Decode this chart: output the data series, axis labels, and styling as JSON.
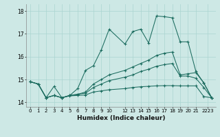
{
  "xlabel": "Humidex (Indice chaleur)",
  "background_color": "#cde8e5",
  "grid_color": "#aad4d0",
  "line_color": "#1a6b5e",
  "xlim": [
    -0.5,
    23.5
  ],
  "ylim": [
    13.8,
    18.3
  ],
  "yticks": [
    14,
    15,
    16,
    17,
    18
  ],
  "xtick_labels": [
    "0",
    "1",
    "2",
    "3",
    "4",
    "5",
    "6",
    "7",
    "8",
    "9",
    "10",
    "12",
    "13",
    "14",
    "15",
    "16",
    "17",
    "18",
    "19",
    "20",
    "21",
    "2223"
  ],
  "xtick_pos": [
    0,
    1,
    2,
    3,
    4,
    5,
    6,
    7,
    8,
    9,
    10,
    12,
    13,
    14,
    15,
    16,
    17,
    18,
    19,
    20,
    21,
    22.5
  ],
  "series": [
    {
      "x": [
        0,
        1,
        2,
        3,
        4,
        5,
        6,
        7,
        8,
        9,
        10,
        12,
        13,
        14,
        15,
        16,
        17,
        18,
        19,
        20,
        21,
        22,
        23
      ],
      "y": [
        14.9,
        14.8,
        14.2,
        14.7,
        14.2,
        14.3,
        14.6,
        15.4,
        15.6,
        16.3,
        17.2,
        16.55,
        17.1,
        17.2,
        16.6,
        17.78,
        17.75,
        17.7,
        16.65,
        16.65,
        15.35,
        14.85,
        14.2
      ]
    },
    {
      "x": [
        0,
        1,
        2,
        3,
        4,
        5,
        6,
        7,
        8,
        9,
        10,
        12,
        13,
        14,
        15,
        16,
        17,
        18,
        19,
        20,
        21,
        22,
        23
      ],
      "y": [
        14.9,
        14.8,
        14.2,
        14.3,
        14.2,
        14.3,
        14.35,
        14.45,
        14.8,
        15.0,
        15.2,
        15.4,
        15.55,
        15.7,
        15.85,
        16.05,
        16.15,
        16.2,
        15.2,
        15.25,
        15.3,
        14.85,
        14.2
      ]
    },
    {
      "x": [
        0,
        1,
        2,
        3,
        4,
        5,
        6,
        7,
        8,
        9,
        10,
        12,
        13,
        14,
        15,
        16,
        17,
        18,
        19,
        20,
        21,
        22,
        23
      ],
      "y": [
        14.9,
        14.8,
        14.2,
        14.3,
        14.2,
        14.3,
        14.35,
        14.4,
        14.65,
        14.8,
        14.95,
        15.1,
        15.2,
        15.35,
        15.45,
        15.58,
        15.65,
        15.7,
        15.15,
        15.15,
        15.05,
        14.65,
        14.2
      ]
    },
    {
      "x": [
        0,
        1,
        2,
        3,
        4,
        5,
        6,
        7,
        8,
        9,
        10,
        12,
        13,
        14,
        15,
        16,
        17,
        18,
        19,
        20,
        21,
        22,
        23
      ],
      "y": [
        14.9,
        14.8,
        14.2,
        14.3,
        14.2,
        14.28,
        14.3,
        14.32,
        14.45,
        14.5,
        14.55,
        14.6,
        14.65,
        14.68,
        14.7,
        14.72,
        14.73,
        14.73,
        14.72,
        14.72,
        14.72,
        14.25,
        14.2
      ]
    }
  ]
}
